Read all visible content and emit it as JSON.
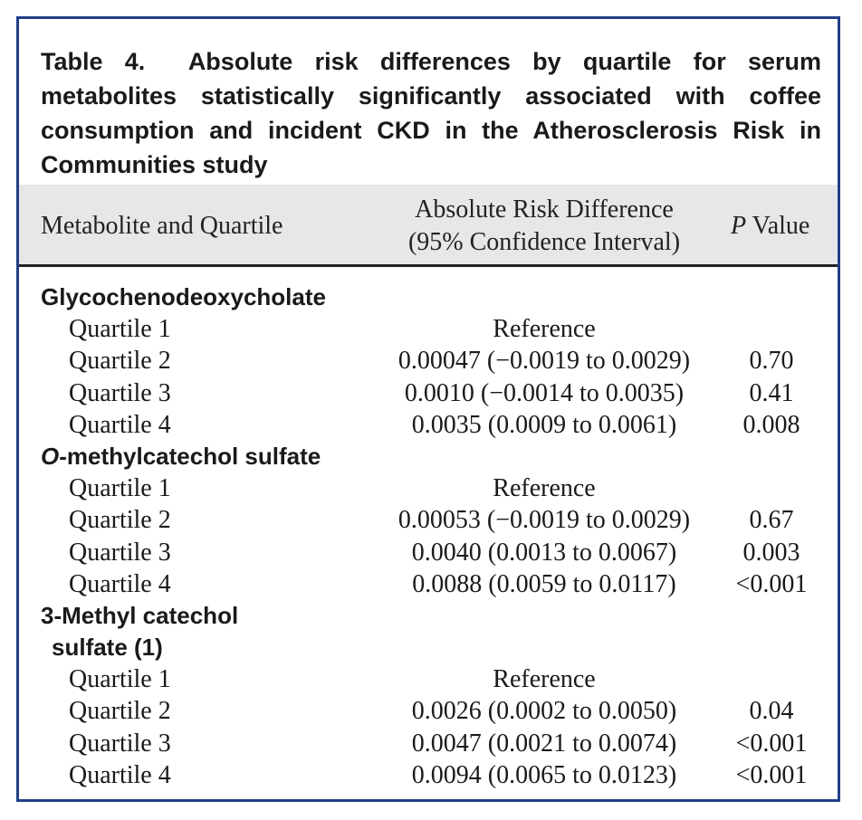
{
  "caption": {
    "label": "Table 4.",
    "text": "Absolute risk differences by quartile for serum metabolites statistically significantly associated with coffee consumption and incident CKD in the Atherosclerosis Risk in Communities study"
  },
  "header": {
    "metabolite": "Metabolite and Quartile",
    "ard_line1": "Absolute Risk Difference",
    "ard_line2": "(95% Confidence Interval)",
    "p_italic": "P",
    "p_rest": " Value"
  },
  "groups": [
    {
      "name_prefix_italic": "",
      "name": "Glycochenodeoxycholate",
      "name_cont": "",
      "rows": [
        {
          "quartile": "Quartile 1",
          "ci": "Reference",
          "p": ""
        },
        {
          "quartile": "Quartile 2",
          "ci": "0.00047 (−0.0019 to 0.0029)",
          "p": "0.70"
        },
        {
          "quartile": "Quartile 3",
          "ci": "0.0010 (−0.0014 to 0.0035)",
          "p": "0.41"
        },
        {
          "quartile": "Quartile 4",
          "ci": "0.0035 (0.0009 to 0.0061)",
          "p": "0.008"
        }
      ]
    },
    {
      "name_prefix_italic": "O",
      "name": "-methylcatechol sulfate",
      "name_cont": "",
      "rows": [
        {
          "quartile": "Quartile 1",
          "ci": "Reference",
          "p": ""
        },
        {
          "quartile": "Quartile 2",
          "ci": "0.00053 (−0.0019 to 0.0029)",
          "p": "0.67"
        },
        {
          "quartile": "Quartile 3",
          "ci": "0.0040 (0.0013 to 0.0067)",
          "p": "0.003"
        },
        {
          "quartile": "Quartile 4",
          "ci": "0.0088 (0.0059 to 0.0117)",
          "p": "<0.001"
        }
      ]
    },
    {
      "name_prefix_italic": "",
      "name": "3-Methyl catechol",
      "name_cont": "sulfate (1)",
      "rows": [
        {
          "quartile": "Quartile 1",
          "ci": "Reference",
          "p": ""
        },
        {
          "quartile": "Quartile 2",
          "ci": "0.0026 (0.0002 to 0.0050)",
          "p": "0.04"
        },
        {
          "quartile": "Quartile 3",
          "ci": "0.0047 (0.0021 to 0.0074)",
          "p": "<0.001"
        },
        {
          "quartile": "Quartile 4",
          "ci": "0.0094 (0.0065 to 0.0123)",
          "p": "<0.001"
        }
      ]
    }
  ]
}
